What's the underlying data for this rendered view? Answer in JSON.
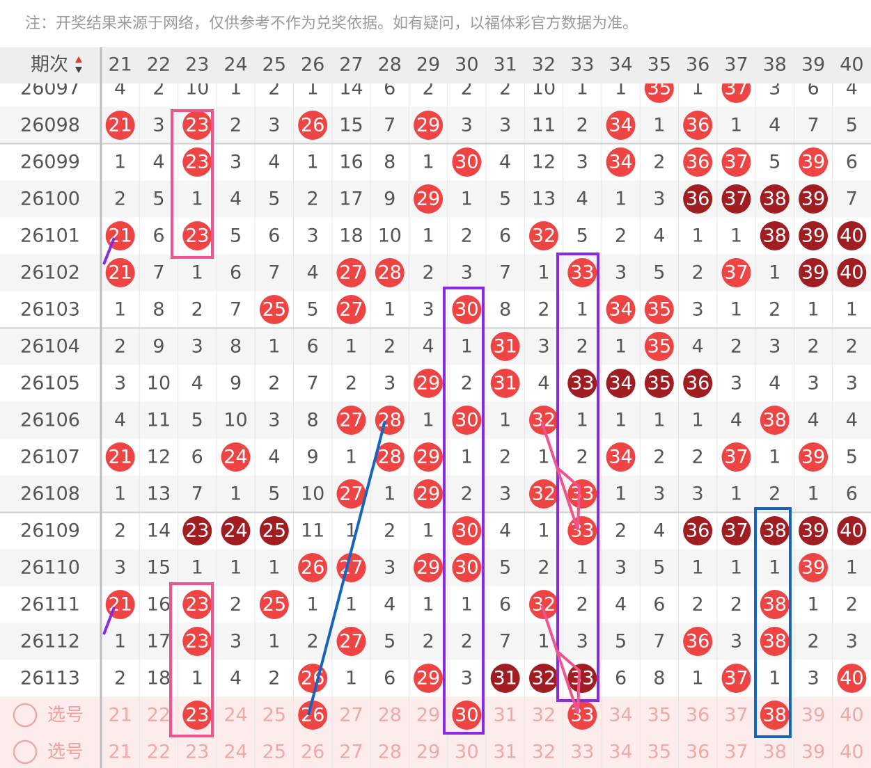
{
  "note": "注：开奖结果来源于网络，仅供参考不作为兑奖依据。如有疑问，以福体彩官方数据为准。",
  "header": {
    "period": "期次",
    "columns": [
      21,
      22,
      23,
      24,
      25,
      26,
      27,
      28,
      29,
      30,
      31,
      32,
      33,
      34,
      35,
      36,
      37,
      38,
      39,
      40
    ]
  },
  "ball_colors": {
    "red": "#ef4444",
    "dark": "#a01d22"
  },
  "rows": [
    {
      "period": "26097",
      "cells": [
        4,
        2,
        10,
        1,
        2,
        1,
        14,
        6,
        2,
        2,
        2,
        10,
        1,
        1,
        {
          "value": 35,
          "ball": "red"
        },
        1,
        {
          "value": 37,
          "ball": "red"
        },
        3,
        6,
        4
      ]
    },
    {
      "period": "26098",
      "cells": [
        {
          "value": 21,
          "ball": "red"
        },
        3,
        {
          "value": 23,
          "ball": "red"
        },
        2,
        3,
        {
          "value": 26,
          "ball": "red"
        },
        15,
        7,
        {
          "value": 29,
          "ball": "red"
        },
        3,
        3,
        11,
        2,
        {
          "value": 34,
          "ball": "red"
        },
        1,
        {
          "value": 36,
          "ball": "red"
        },
        1,
        4,
        7,
        5
      ]
    },
    {
      "period": "26099",
      "cells": [
        1,
        4,
        {
          "value": 23,
          "ball": "red"
        },
        3,
        4,
        1,
        16,
        8,
        1,
        {
          "value": 30,
          "ball": "red"
        },
        4,
        12,
        3,
        {
          "value": 34,
          "ball": "red"
        },
        2,
        {
          "value": 36,
          "ball": "red"
        },
        {
          "value": 37,
          "ball": "red"
        },
        5,
        {
          "value": 39,
          "ball": "red"
        },
        6
      ]
    },
    {
      "period": "26100",
      "cells": [
        2,
        5,
        1,
        4,
        5,
        2,
        17,
        9,
        {
          "value": 29,
          "ball": "red"
        },
        1,
        5,
        13,
        4,
        1,
        3,
        {
          "value": 36,
          "ball": "dark"
        },
        {
          "value": 37,
          "ball": "dark"
        },
        {
          "value": 38,
          "ball": "dark"
        },
        {
          "value": 39,
          "ball": "dark"
        },
        7
      ]
    },
    {
      "period": "26101",
      "cells": [
        {
          "value": 21,
          "ball": "red"
        },
        6,
        {
          "value": 23,
          "ball": "red"
        },
        5,
        6,
        3,
        18,
        10,
        1,
        2,
        6,
        {
          "value": 32,
          "ball": "red"
        },
        5,
        2,
        4,
        1,
        1,
        {
          "value": 38,
          "ball": "dark"
        },
        {
          "value": 39,
          "ball": "dark"
        },
        {
          "value": 40,
          "ball": "dark"
        }
      ]
    },
    {
      "period": "26102",
      "cells": [
        {
          "value": 21,
          "ball": "red"
        },
        7,
        1,
        6,
        7,
        4,
        {
          "value": 27,
          "ball": "red"
        },
        {
          "value": 28,
          "ball": "red"
        },
        2,
        3,
        7,
        1,
        {
          "value": 33,
          "ball": "red"
        },
        3,
        5,
        2,
        {
          "value": 37,
          "ball": "red"
        },
        1,
        {
          "value": 39,
          "ball": "dark"
        },
        {
          "value": 40,
          "ball": "dark"
        }
      ]
    },
    {
      "period": "26103",
      "cells": [
        1,
        8,
        2,
        7,
        {
          "value": 25,
          "ball": "red"
        },
        5,
        {
          "value": 27,
          "ball": "red"
        },
        1,
        3,
        {
          "value": 30,
          "ball": "red"
        },
        8,
        2,
        1,
        {
          "value": 34,
          "ball": "red"
        },
        {
          "value": 35,
          "ball": "red"
        },
        3,
        1,
        2,
        1,
        1
      ]
    },
    {
      "period": "26104",
      "cells": [
        2,
        9,
        3,
        8,
        1,
        6,
        1,
        2,
        4,
        1,
        {
          "value": 31,
          "ball": "red"
        },
        3,
        2,
        1,
        {
          "value": 35,
          "ball": "red"
        },
        4,
        2,
        3,
        2,
        2
      ]
    },
    {
      "period": "26105",
      "cells": [
        3,
        10,
        4,
        9,
        2,
        7,
        2,
        3,
        {
          "value": 29,
          "ball": "red"
        },
        2,
        {
          "value": 31,
          "ball": "red"
        },
        4,
        {
          "value": 33,
          "ball": "dark"
        },
        {
          "value": 34,
          "ball": "dark"
        },
        {
          "value": 35,
          "ball": "dark"
        },
        {
          "value": 36,
          "ball": "dark"
        },
        3,
        4,
        3,
        3
      ]
    },
    {
      "period": "26106",
      "cells": [
        4,
        11,
        5,
        10,
        3,
        8,
        {
          "value": 27,
          "ball": "red"
        },
        {
          "value": 28,
          "ball": "red"
        },
        1,
        {
          "value": 30,
          "ball": "red"
        },
        1,
        {
          "value": 32,
          "ball": "red"
        },
        1,
        1,
        1,
        1,
        4,
        {
          "value": 38,
          "ball": "red"
        },
        4,
        4
      ]
    },
    {
      "period": "26107",
      "cells": [
        {
          "value": 21,
          "ball": "red"
        },
        12,
        6,
        {
          "value": 24,
          "ball": "red"
        },
        4,
        9,
        1,
        {
          "value": 28,
          "ball": "red"
        },
        {
          "value": 29,
          "ball": "red"
        },
        1,
        2,
        1,
        2,
        {
          "value": 34,
          "ball": "red"
        },
        2,
        2,
        {
          "value": 37,
          "ball": "red"
        },
        1,
        {
          "value": 39,
          "ball": "red"
        },
        5
      ]
    },
    {
      "period": "26108",
      "cells": [
        1,
        13,
        7,
        1,
        5,
        10,
        {
          "value": 27,
          "ball": "red"
        },
        1,
        {
          "value": 29,
          "ball": "red"
        },
        2,
        3,
        {
          "value": 32,
          "ball": "red"
        },
        {
          "value": 33,
          "ball": "red"
        },
        1,
        3,
        3,
        1,
        2,
        1,
        6
      ]
    },
    {
      "period": "26109",
      "cells": [
        2,
        14,
        {
          "value": 23,
          "ball": "dark"
        },
        {
          "value": 24,
          "ball": "dark"
        },
        {
          "value": 25,
          "ball": "dark"
        },
        11,
        1,
        2,
        1,
        {
          "value": 30,
          "ball": "red"
        },
        4,
        1,
        {
          "value": 33,
          "ball": "red"
        },
        2,
        4,
        {
          "value": 36,
          "ball": "dark"
        },
        {
          "value": 37,
          "ball": "dark"
        },
        {
          "value": 38,
          "ball": "dark"
        },
        {
          "value": 39,
          "ball": "dark"
        },
        {
          "value": 40,
          "ball": "dark"
        }
      ]
    },
    {
      "period": "26110",
      "cells": [
        3,
        15,
        1,
        1,
        1,
        {
          "value": 26,
          "ball": "red"
        },
        {
          "value": 27,
          "ball": "red"
        },
        3,
        {
          "value": 29,
          "ball": "red"
        },
        {
          "value": 30,
          "ball": "red"
        },
        5,
        2,
        1,
        3,
        5,
        1,
        1,
        1,
        {
          "value": 39,
          "ball": "red"
        },
        1
      ]
    },
    {
      "period": "26111",
      "cells": [
        {
          "value": 21,
          "ball": "red"
        },
        16,
        {
          "value": 23,
          "ball": "red"
        },
        2,
        {
          "value": 25,
          "ball": "red"
        },
        1,
        1,
        4,
        1,
        1,
        6,
        {
          "value": 32,
          "ball": "red"
        },
        2,
        4,
        6,
        2,
        2,
        {
          "value": 38,
          "ball": "red"
        },
        1,
        2
      ]
    },
    {
      "period": "26112",
      "cells": [
        1,
        17,
        {
          "value": 23,
          "ball": "red"
        },
        3,
        1,
        2,
        {
          "value": 27,
          "ball": "red"
        },
        5,
        2,
        2,
        7,
        1,
        3,
        5,
        7,
        {
          "value": 36,
          "ball": "red"
        },
        3,
        {
          "value": 38,
          "ball": "red"
        },
        2,
        3
      ]
    },
    {
      "period": "26113",
      "cells": [
        2,
        18,
        1,
        4,
        2,
        {
          "value": 26,
          "ball": "red"
        },
        1,
        6,
        {
          "value": 29,
          "ball": "red"
        },
        3,
        {
          "value": 31,
          "ball": "dark"
        },
        {
          "value": 32,
          "ball": "dark"
        },
        {
          "value": 33,
          "ball": "dark"
        },
        6,
        8,
        1,
        {
          "value": 37,
          "ball": "red"
        },
        1,
        3,
        {
          "value": 40,
          "ball": "red"
        }
      ]
    }
  ],
  "select_rows": [
    {
      "label": "选号",
      "cells": [
        21,
        22,
        {
          "value": 23,
          "ball": "red"
        },
        24,
        25,
        {
          "value": 26,
          "ball": "red"
        },
        27,
        28,
        29,
        {
          "value": 30,
          "ball": "red"
        },
        31,
        32,
        {
          "value": 33,
          "ball": "red"
        },
        34,
        35,
        36,
        37,
        {
          "value": 38,
          "ball": "red"
        },
        39,
        40
      ]
    },
    {
      "label": "选号",
      "cells": [
        21,
        22,
        23,
        24,
        25,
        26,
        27,
        28,
        29,
        30,
        31,
        32,
        33,
        34,
        35,
        36,
        37,
        38,
        39,
        40
      ]
    }
  ]
}
